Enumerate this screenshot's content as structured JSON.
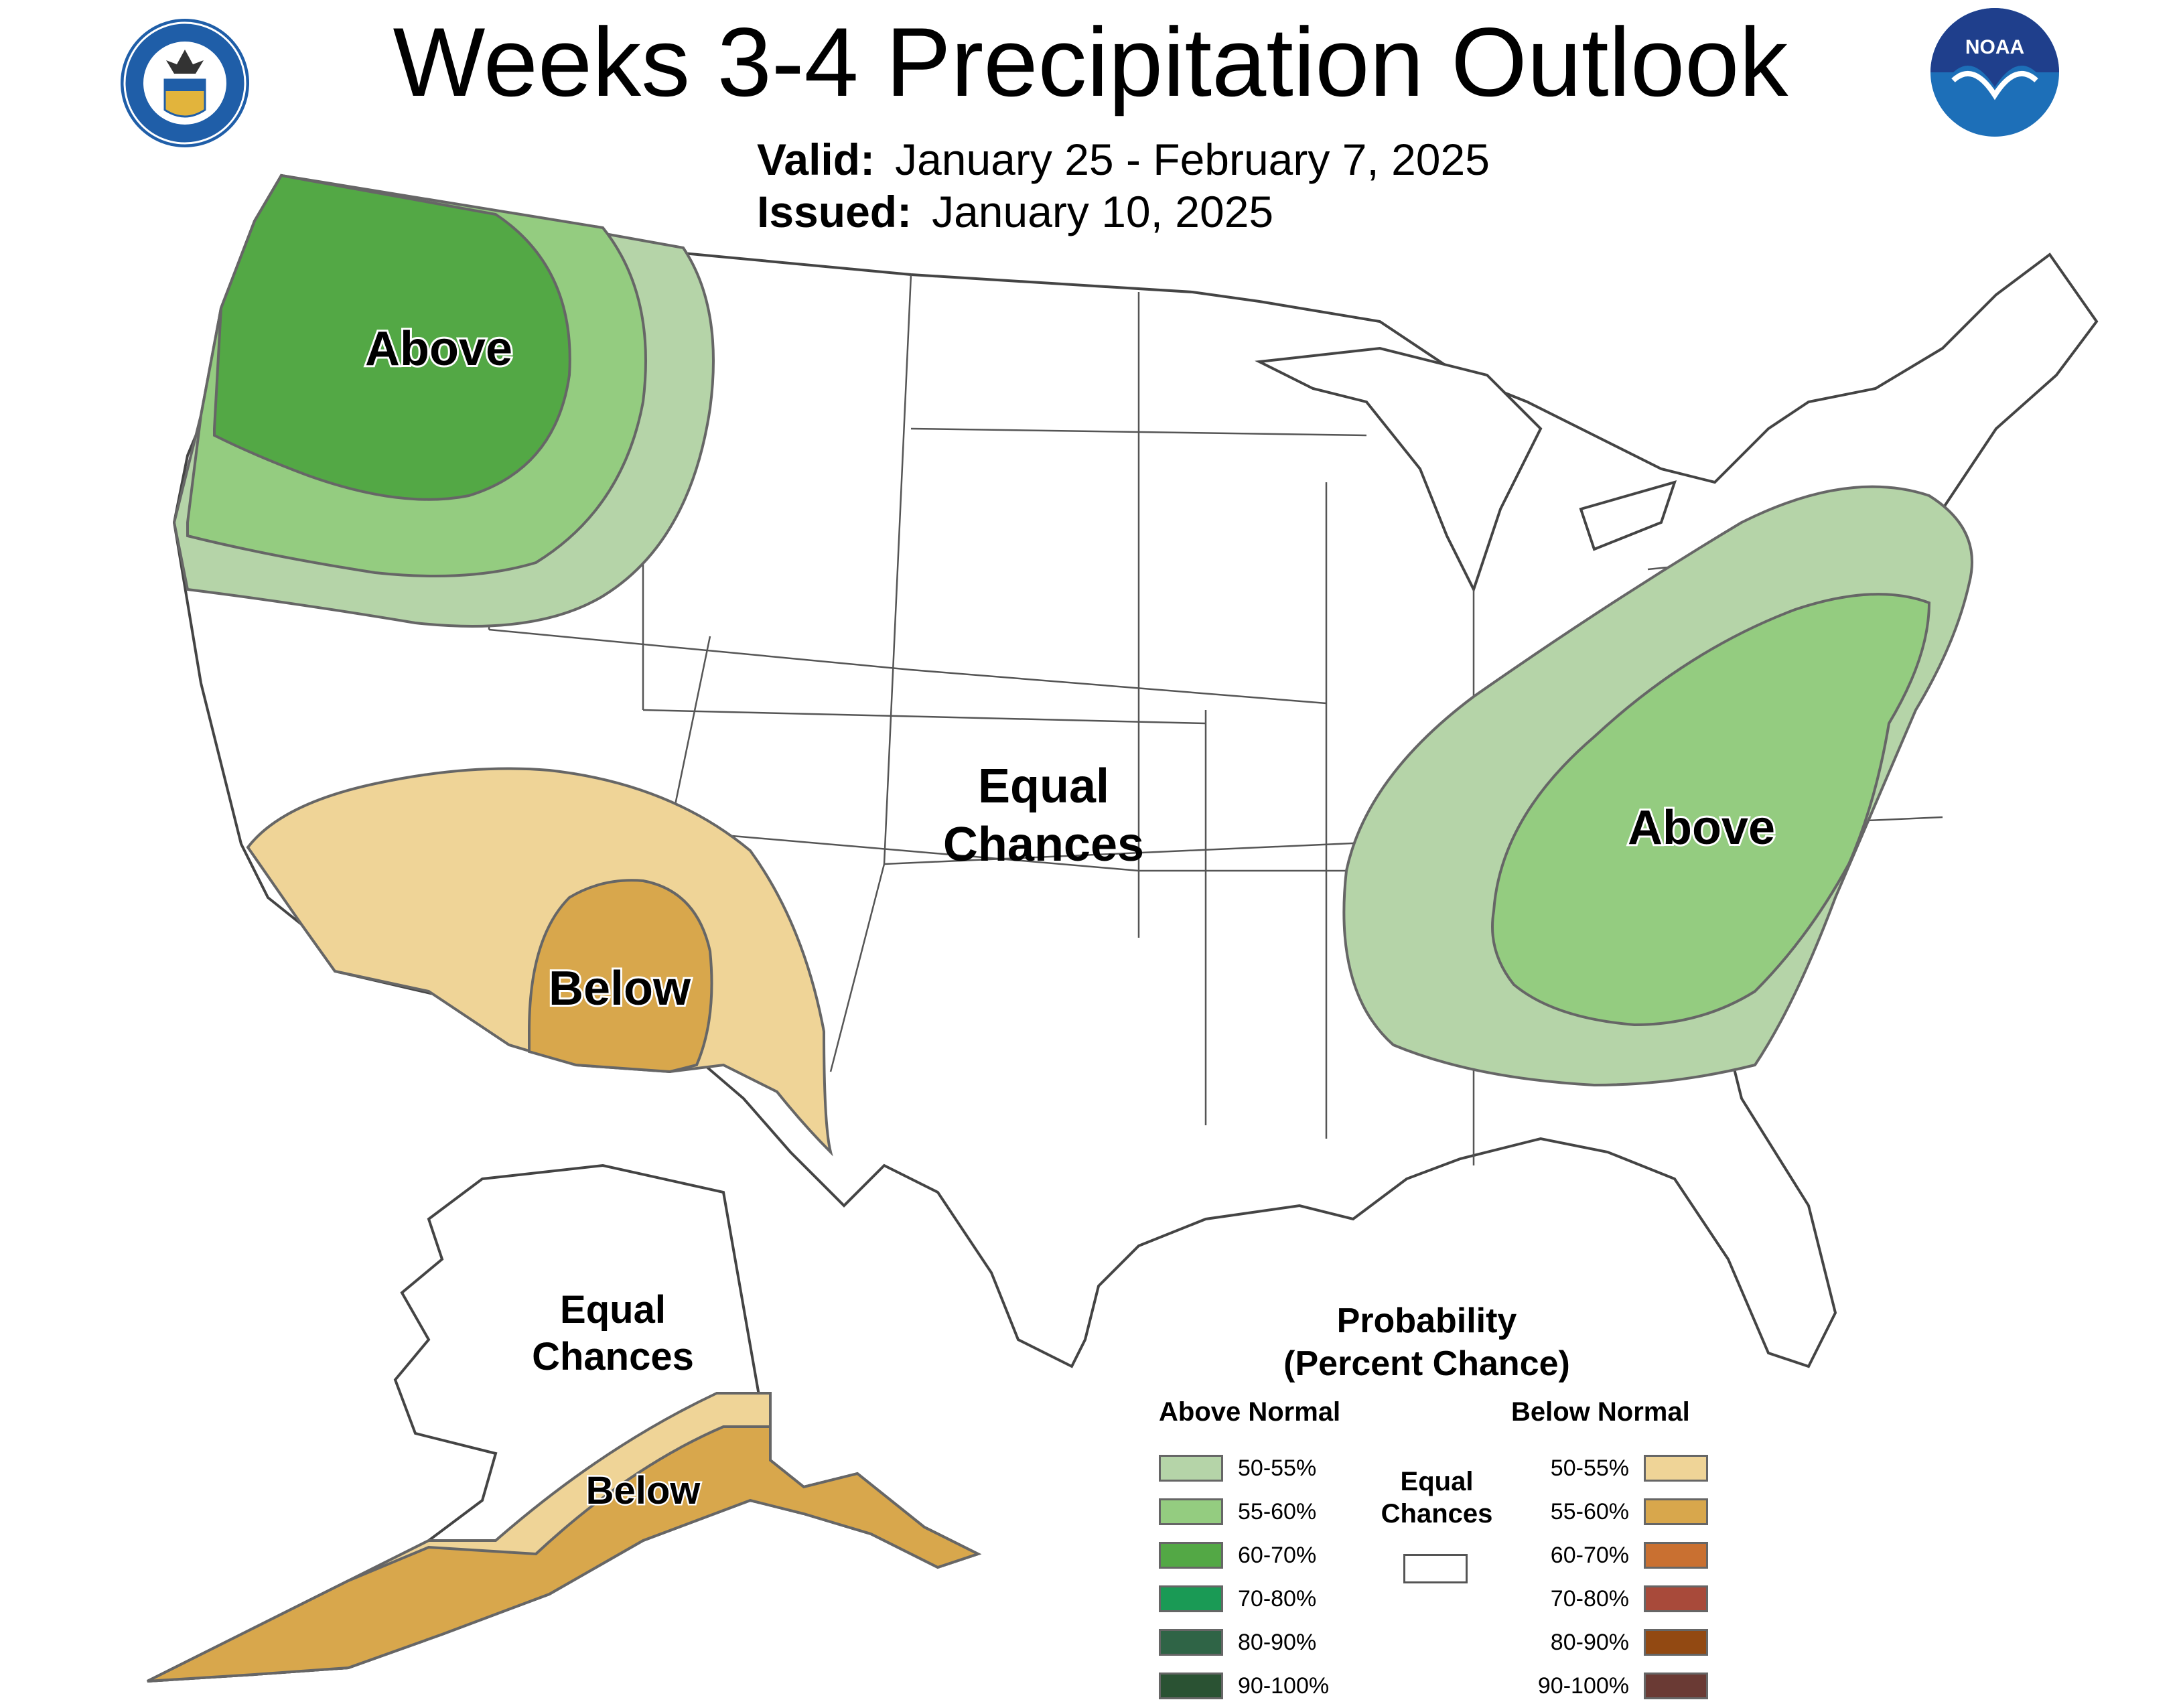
{
  "header": {
    "title": "Weeks 3-4 Precipitation Outlook",
    "valid_label": "Valid:",
    "valid_value": "January 25 - February 7, 2025",
    "issued_label": "Issued:",
    "issued_value": "January 10, 2025"
  },
  "logos": {
    "noaa_text": "NOAA",
    "doc_seal_text": "DEPARTMENT OF COMMERCE · UNITED STATES OF AMERICA"
  },
  "map_labels": {
    "nw_above": "Above",
    "se_above": "Above",
    "sw_below": "Below",
    "conus_equal_1": "Equal",
    "conus_equal_2": "Chances",
    "ak_equal_1": "Equal",
    "ak_equal_2": "Chances",
    "ak_below": "Below"
  },
  "legend": {
    "title_line1": "Probability",
    "title_line2": "(Percent Chance)",
    "above_head": "Above Normal",
    "below_head": "Below Normal",
    "equal_line1": "Equal",
    "equal_line2": "Chances",
    "above": [
      {
        "label": "50-55%",
        "color": "#b5d4a8"
      },
      {
        "label": "55-60%",
        "color": "#94cc80"
      },
      {
        "label": "60-70%",
        "color": "#53a845"
      },
      {
        "label": "70-80%",
        "color": "#1a9a55"
      },
      {
        "label": "80-90%",
        "color": "#2f6446"
      },
      {
        "label": "90-100%",
        "color": "#2a5233"
      }
    ],
    "below": [
      {
        "label": "50-55%",
        "color": "#efd497"
      },
      {
        "label": "55-60%",
        "color": "#d8a74c"
      },
      {
        "label": "60-70%",
        "color": "#c97031"
      },
      {
        "label": "70-80%",
        "color": "#a84a3a"
      },
      {
        "label": "80-90%",
        "color": "#924912"
      },
      {
        "label": "90-100%",
        "color": "#6a3a34"
      }
    ]
  }
}
